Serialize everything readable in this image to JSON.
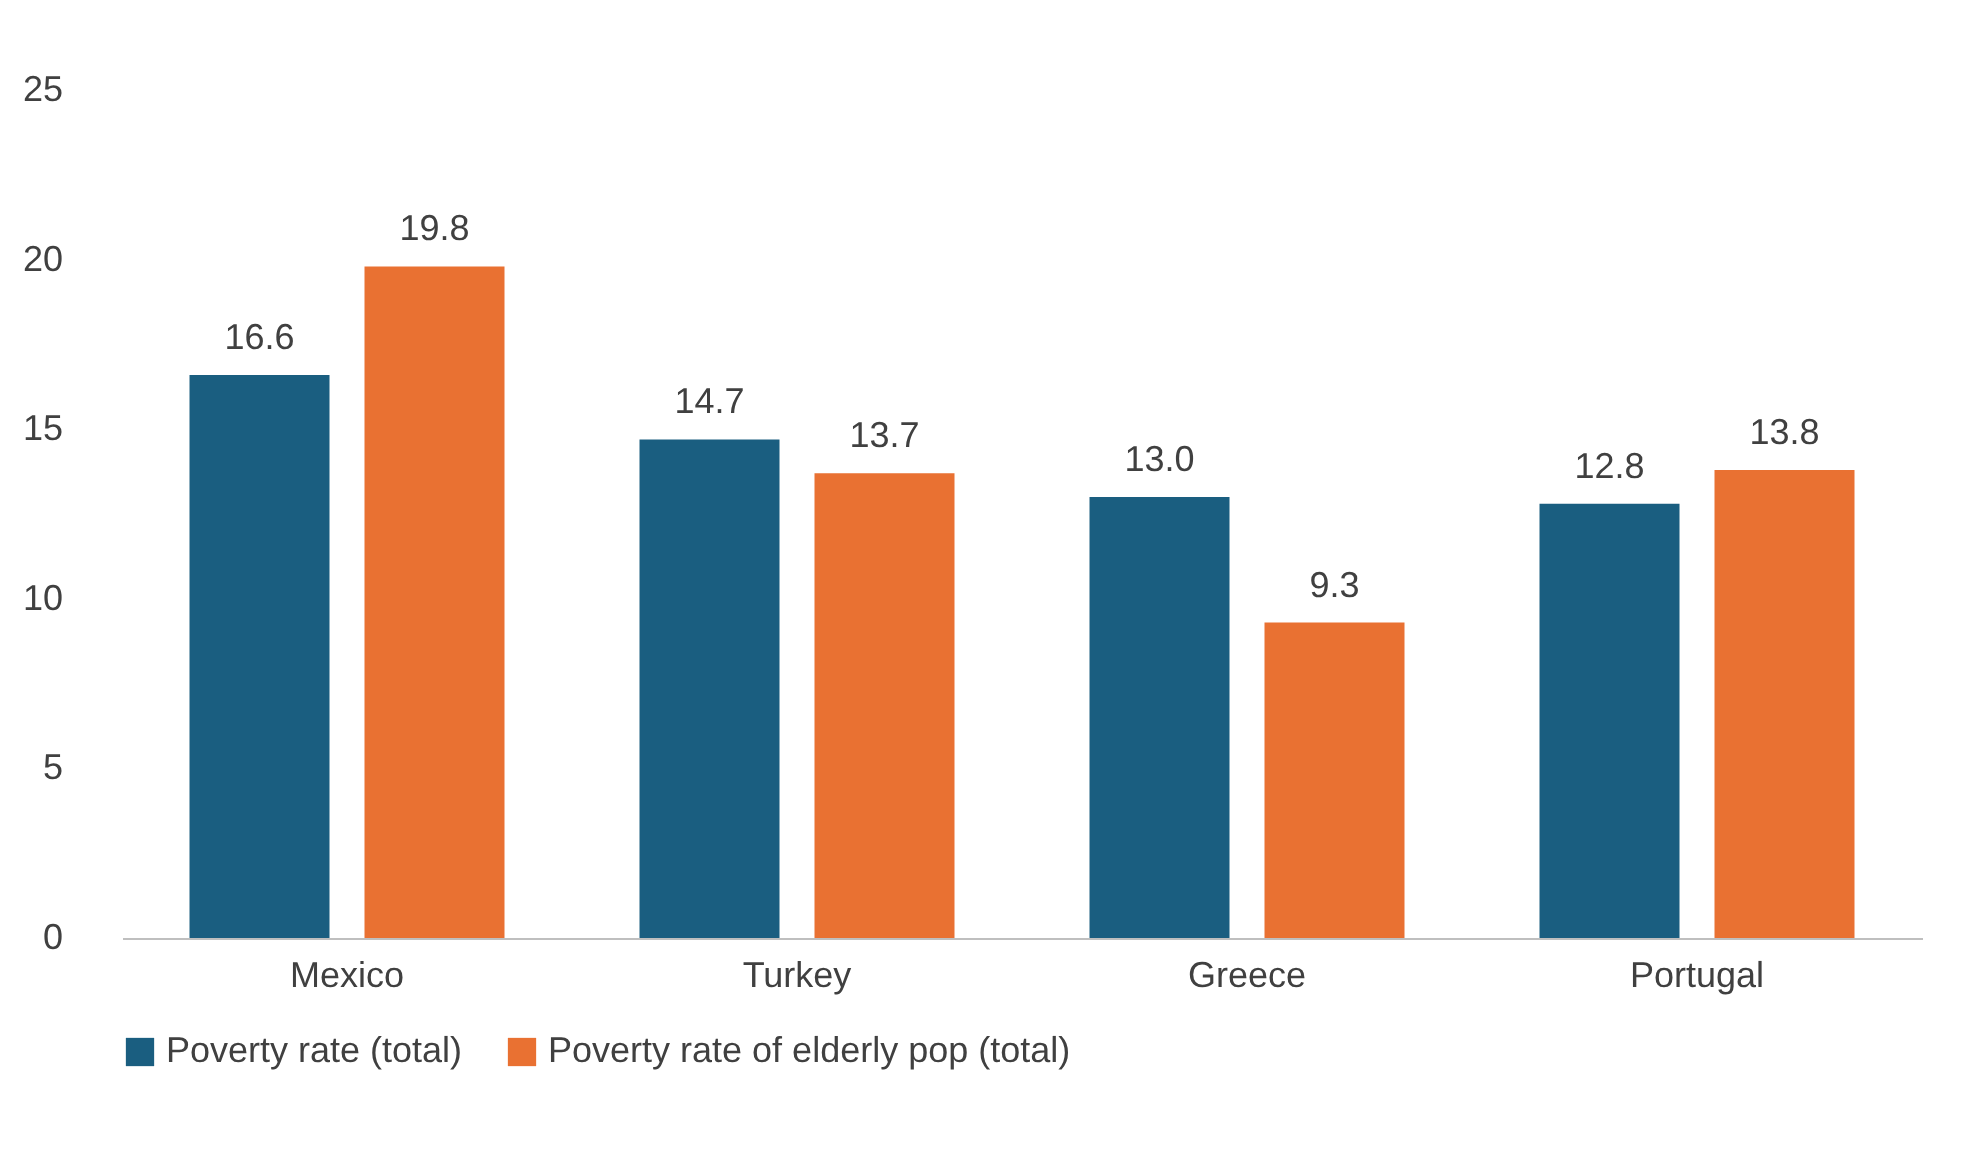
{
  "chart_data": {
    "type": "bar",
    "categories": [
      "Mexico",
      "Turkey",
      "Greece",
      "Portugal"
    ],
    "series": [
      {
        "name": "Poverty rate (total)",
        "color": "#1a5e80",
        "values": [
          16.6,
          14.7,
          13.0,
          12.8
        ],
        "value_labels": [
          "16.6",
          "14.7",
          "13.0",
          "12.8"
        ]
      },
      {
        "name": "Poverty rate of elderly pop (total)",
        "color": "#e97132",
        "values": [
          19.8,
          13.7,
          9.3,
          13.8
        ],
        "value_labels": [
          "19.8",
          "13.7",
          "9.3",
          "13.8"
        ]
      }
    ],
    "ylim": [
      0,
      25
    ],
    "yticks": [
      0,
      5,
      10,
      15,
      20,
      25
    ],
    "grid": false,
    "legend": "bottom"
  }
}
